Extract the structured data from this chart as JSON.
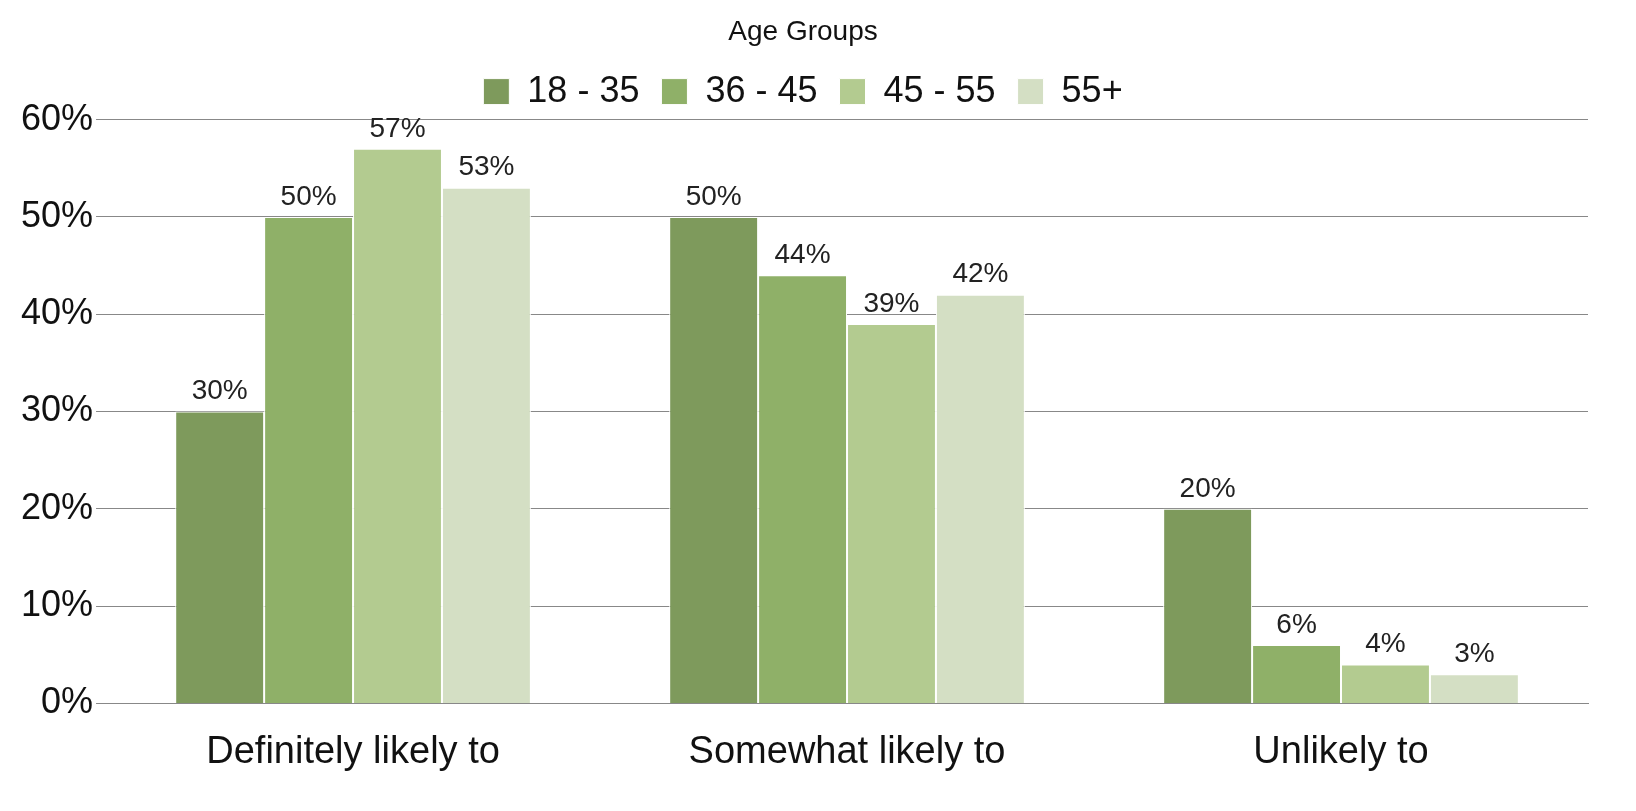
{
  "chart_data": {
    "type": "bar",
    "legend_title": "Age Groups",
    "categories": [
      "Definitely likely to",
      "Somewhat likely to",
      "Unlikely to"
    ],
    "series": [
      {
        "name": "18 - 35",
        "color": "#7e9a5c",
        "values": [
          30,
          50,
          20
        ],
        "value_labels": [
          "30%",
          "50%",
          "20%"
        ]
      },
      {
        "name": "36 - 45",
        "color": "#8fb068",
        "values": [
          50,
          44,
          6
        ],
        "value_labels": [
          "50%",
          "44%",
          "6%"
        ]
      },
      {
        "name": "45 - 55",
        "color": "#b3cb90",
        "values": [
          57,
          39,
          4
        ],
        "value_labels": [
          "57%",
          "39%",
          "4%"
        ]
      },
      {
        "name": "55+",
        "color": "#d4dfc4",
        "values": [
          53,
          42,
          3
        ],
        "value_labels": [
          "53%",
          "42%",
          "3%"
        ]
      }
    ],
    "ylim": [
      0,
      60
    ],
    "yticks": [
      {
        "value": 0,
        "label": "0%"
      },
      {
        "value": 10,
        "label": "10%"
      },
      {
        "value": 20,
        "label": "20%"
      },
      {
        "value": 30,
        "label": "30%"
      },
      {
        "value": 40,
        "label": "40%"
      },
      {
        "value": 50,
        "label": "50%"
      },
      {
        "value": 60,
        "label": "60%"
      }
    ],
    "grid": "y",
    "legend": "top"
  }
}
